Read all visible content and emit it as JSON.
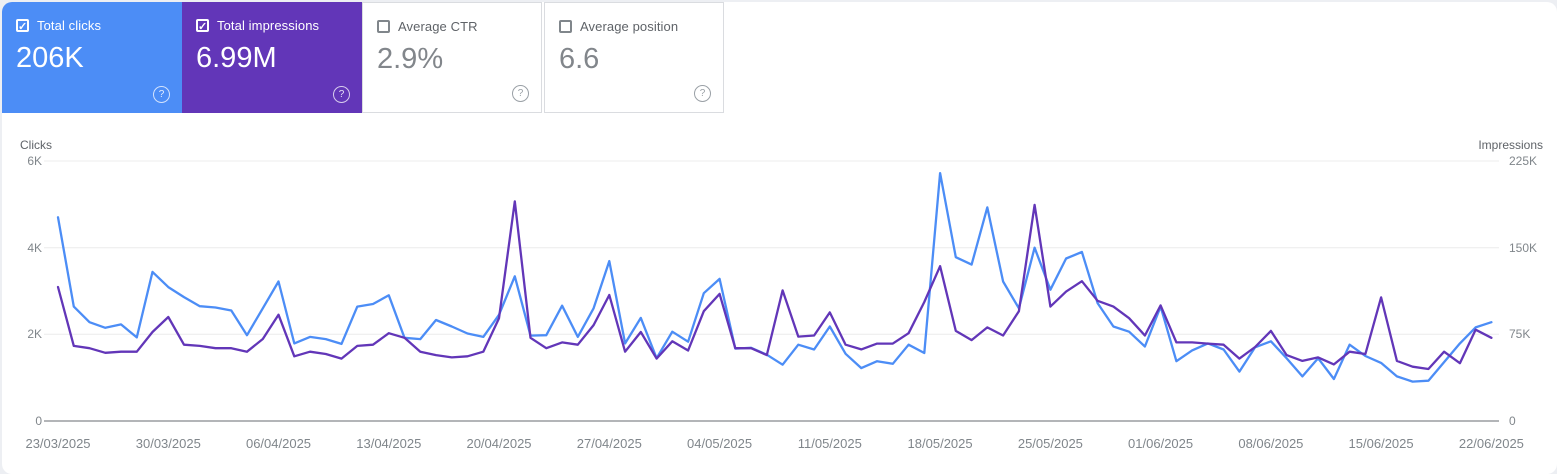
{
  "page": {
    "background": "#edeff3",
    "panel_bg": "#ffffff"
  },
  "metric_cards": [
    {
      "label": "Total clicks",
      "value": "206K",
      "checked": true,
      "bg_color": "#4c8df6",
      "check_glyph": "✓"
    },
    {
      "label": "Total impressions",
      "value": "6.99M",
      "checked": true,
      "bg_color": "#6236b8",
      "check_glyph": "✓"
    },
    {
      "label": "Average CTR",
      "value": "2.9%",
      "checked": false,
      "bg_color": "#ffffff",
      "check_glyph": ""
    },
    {
      "label": "Average position",
      "value": "6.6",
      "checked": false,
      "bg_color": "#ffffff",
      "check_glyph": ""
    }
  ],
  "help_icon_glyph": "?",
  "chart_data": {
    "type": "line",
    "grid": "horizontal",
    "points_per_series": 92,
    "x_range": [
      "23/03/2025",
      "22/06/2025"
    ],
    "x_tick_labels": [
      "23/03/2025",
      "30/03/2025",
      "06/04/2025",
      "13/04/2025",
      "20/04/2025",
      "27/04/2025",
      "04/05/2025",
      "11/05/2025",
      "18/05/2025",
      "25/05/2025",
      "01/06/2025",
      "08/06/2025",
      "15/06/2025",
      "22/06/2025"
    ],
    "left_axis": {
      "title": "Clicks",
      "tick_labels": [
        "6K",
        "4K",
        "2K",
        "0"
      ],
      "range": [
        0,
        6000
      ]
    },
    "right_axis": {
      "title": "Impressions",
      "tick_labels": [
        "225K",
        "150K",
        "75K",
        "0"
      ],
      "range": [
        0,
        225000
      ]
    },
    "series": [
      {
        "name": "Clicks",
        "axis": "left",
        "color": "#4c8df6",
        "values": [
          4700,
          2640,
          2280,
          2150,
          2230,
          1930,
          3440,
          3090,
          2860,
          2650,
          2620,
          2550,
          1980,
          2600,
          3220,
          1790,
          1940,
          1890,
          1780,
          2640,
          2700,
          2900,
          1920,
          1890,
          2330,
          2180,
          2020,
          1940,
          2450,
          3340,
          1970,
          1980,
          2660,
          1940,
          2600,
          3690,
          1790,
          2380,
          1450,
          2060,
          1830,
          2950,
          3280,
          1670,
          1690,
          1530,
          1300,
          1760,
          1650,
          2180,
          1550,
          1220,
          1380,
          1320,
          1760,
          1570,
          5720,
          3780,
          3610,
          4930,
          3220,
          2600,
          4000,
          3030,
          3750,
          3900,
          2720,
          2180,
          2060,
          1720,
          2640,
          1380,
          1630,
          1790,
          1650,
          1140,
          1700,
          1840,
          1450,
          1030,
          1450,
          970,
          1760,
          1500,
          1340,
          1030,
          910,
          930,
          1360,
          1790,
          2160,
          2280
        ]
      },
      {
        "name": "Impressions",
        "axis": "right",
        "color": "#6236b8",
        "values": [
          116000,
          65000,
          63000,
          59000,
          60000,
          60000,
          77000,
          90000,
          66000,
          65000,
          63000,
          63000,
          60000,
          71000,
          92000,
          56000,
          60000,
          58000,
          54000,
          65000,
          66000,
          76000,
          72000,
          60000,
          57000,
          55000,
          56000,
          60000,
          89000,
          190000,
          72000,
          63000,
          68000,
          66000,
          83000,
          109000,
          60000,
          77000,
          54000,
          69000,
          61000,
          95000,
          110000,
          63000,
          63000,
          57000,
          113000,
          73000,
          74000,
          94000,
          66000,
          62000,
          67000,
          67000,
          76000,
          103000,
          134000,
          78000,
          70000,
          81000,
          74000,
          95000,
          187000,
          99000,
          112000,
          121000,
          104000,
          99000,
          89000,
          74000,
          100000,
          68000,
          68000,
          67000,
          66000,
          54000,
          64000,
          78000,
          57000,
          52000,
          55000,
          49000,
          60000,
          58000,
          107000,
          52000,
          47000,
          45000,
          60000,
          50000,
          79000,
          72000
        ]
      }
    ]
  }
}
